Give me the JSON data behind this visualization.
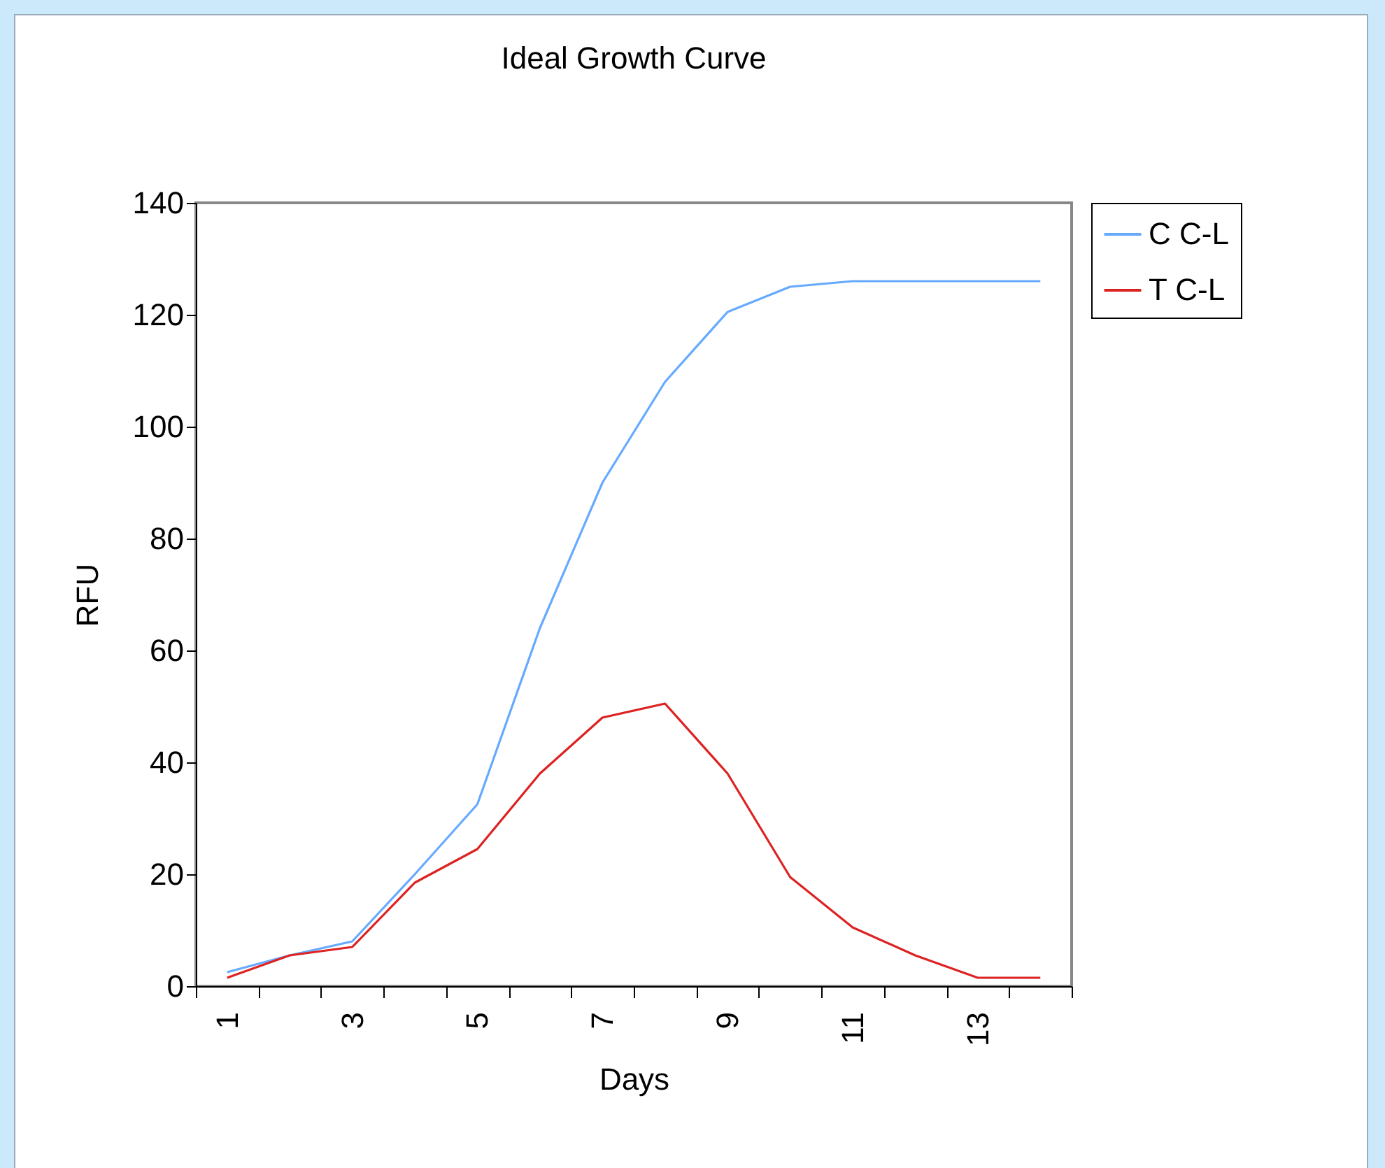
{
  "chart_data": {
    "type": "line",
    "title": "Ideal Growth Curve",
    "xlabel": "Days",
    "ylabel": "RFU",
    "categories": [
      "1",
      null,
      "3",
      null,
      "5",
      null,
      "7",
      null,
      "9",
      null,
      "11",
      null,
      "13",
      null
    ],
    "series": [
      {
        "name": "C C-L",
        "color": "#66aaff",
        "values": [
          2.5,
          5.5,
          8,
          20,
          32.5,
          64,
          90,
          108,
          120.5,
          125,
          126,
          126,
          126,
          126
        ]
      },
      {
        "name": "T C-L",
        "color": "#dd2222",
        "values": [
          1.5,
          5.5,
          7,
          18.5,
          24.5,
          38,
          48,
          50.5,
          38,
          19.5,
          10.5,
          5.5,
          1.5,
          1.5
        ]
      }
    ],
    "ylim": [
      0,
      140
    ],
    "yticks": [
      0,
      20,
      40,
      60,
      80,
      100,
      120,
      140
    ],
    "grid": false,
    "legend": "right",
    "marker": "none",
    "line_style": "solid"
  }
}
